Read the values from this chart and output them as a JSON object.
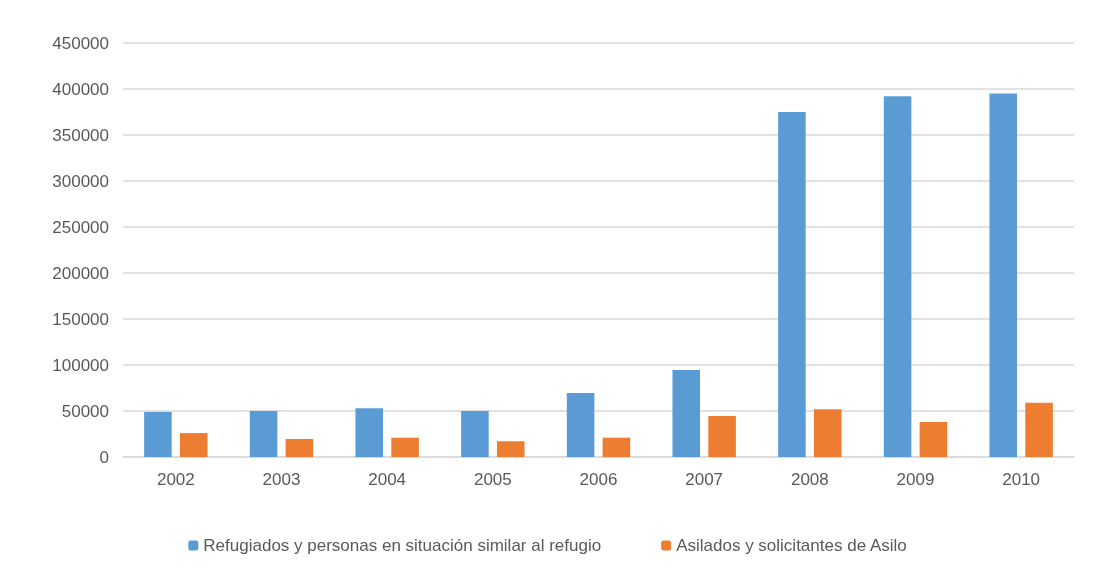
{
  "chart_data": {
    "type": "bar",
    "categories": [
      "2002",
      "2003",
      "2004",
      "2005",
      "2006",
      "2007",
      "2008",
      "2009",
      "2010"
    ],
    "series": [
      {
        "name": "Refugiados y personas en situación similar al refugio",
        "color": "#5b9bd5",
        "values": [
          49000,
          50000,
          53000,
          50000,
          69500,
          94500,
          375000,
          392000,
          395000
        ]
      },
      {
        "name": "Asilados y solicitantes de Asilo",
        "color": "#ed7d31",
        "values": [
          26000,
          19500,
          21000,
          17000,
          21000,
          44500,
          52000,
          38000,
          59000
        ]
      }
    ],
    "ylim": [
      0,
      450000
    ],
    "yticks": [
      0,
      50000,
      100000,
      150000,
      200000,
      250000,
      300000,
      350000,
      400000,
      450000
    ],
    "grid": "y",
    "legend": "bottom"
  }
}
